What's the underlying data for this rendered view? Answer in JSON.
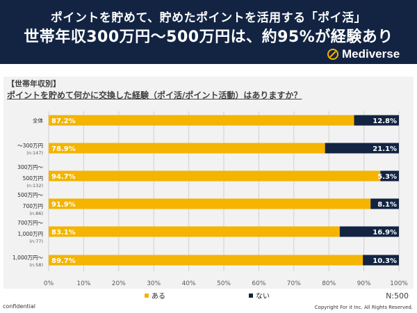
{
  "header": {
    "title_line1": "ポイントを貯めて、貯めたポイントを活用する「ポイ活」",
    "title_line2": "世帯年収300万円〜500万円は、約95%が経験あり",
    "logo_text": "Mediverse",
    "bg_color": "#132443"
  },
  "panel": {
    "subtitle": "【世帯年収別】",
    "question": "ポイントを貯めて何かに交換した経験（ポイ活/ポイント活動）はありますか？"
  },
  "chart_data": {
    "type": "bar",
    "orientation": "horizontal",
    "stacked": true,
    "percent": true,
    "categories": [
      {
        "label": [
          "全体"
        ],
        "sub": ""
      },
      {
        "label": [
          "～300万円"
        ],
        "sub": "(n:147)"
      },
      {
        "label": [
          "300万円～",
          "500万円"
        ],
        "sub": "(n:132)"
      },
      {
        "label": [
          "500万円～",
          "700万円"
        ],
        "sub": "(n:86)"
      },
      {
        "label": [
          "700万円～",
          "1,000万円"
        ],
        "sub": "(n:77)"
      },
      {
        "label": [
          "1,000万円～"
        ],
        "sub": "(n:58)"
      }
    ],
    "series": [
      {
        "name": "ある",
        "color": "#f4b400",
        "values": [
          87.2,
          78.9,
          94.7,
          91.9,
          83.1,
          89.7
        ]
      },
      {
        "name": "ない",
        "color": "#132443",
        "values": [
          12.8,
          21.1,
          5.3,
          8.1,
          16.9,
          10.3
        ]
      }
    ],
    "xlim": [
      0,
      100
    ],
    "xticks": [
      "0%",
      "10%",
      "20%",
      "30%",
      "40%",
      "50%",
      "60%",
      "70%",
      "80%",
      "90%",
      "100%"
    ],
    "grid": true,
    "legend_position": "bottom",
    "n_label": "N:500"
  },
  "footer": {
    "left": "confidential",
    "right": "Copyright For it Inc. All Rights Reserved."
  }
}
